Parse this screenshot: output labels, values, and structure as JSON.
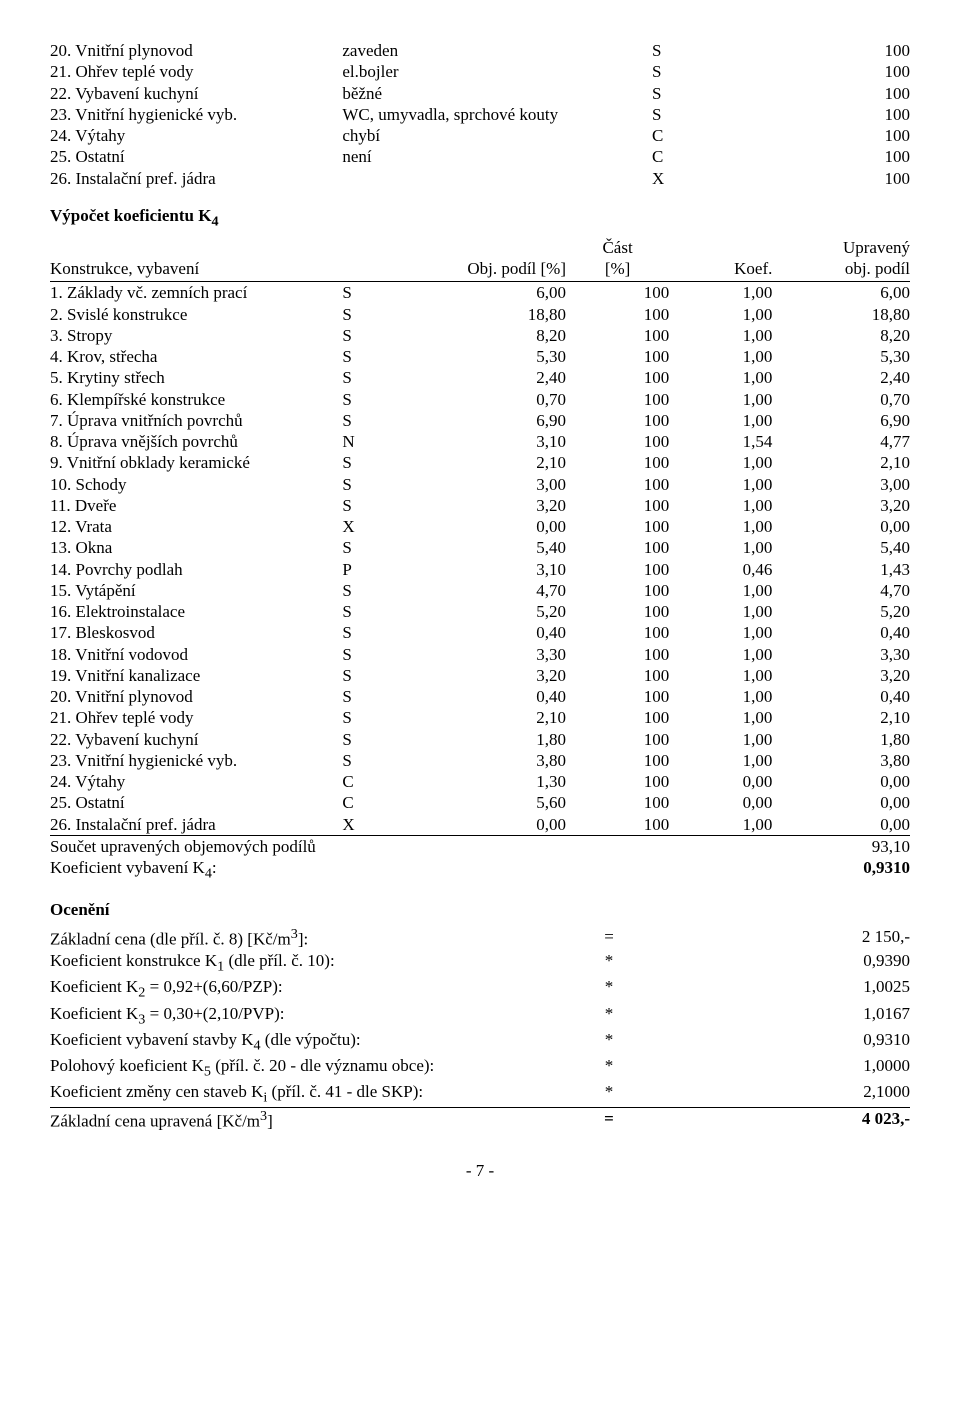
{
  "items": [
    {
      "n": "20.",
      "name": "Vnitřní plynovod",
      "desc": "zaveden",
      "code": "S",
      "val": "100"
    },
    {
      "n": "21.",
      "name": "Ohřev teplé vody",
      "desc": "el.bojler",
      "code": "S",
      "val": "100"
    },
    {
      "n": "22.",
      "name": "Vybavení kuchyní",
      "desc": "běžné",
      "code": "S",
      "val": "100"
    },
    {
      "n": "23.",
      "name": "Vnitřní hygienické vyb.",
      "desc": "WC, umyvadla, sprchové kouty",
      "code": "S",
      "val": "100"
    },
    {
      "n": "24.",
      "name": "Výtahy",
      "desc": "chybí",
      "code": "C",
      "val": "100"
    },
    {
      "n": "25.",
      "name": "Ostatní",
      "desc": "není",
      "code": "C",
      "val": "100"
    },
    {
      "n": "26.",
      "name": "Instalační pref. jádra",
      "desc": "",
      "code": "X",
      "val": "100"
    }
  ],
  "coef_title": "Výpočet koeficientu K4",
  "coef_header": {
    "col1": "Konstrukce, vybavení",
    "col2": "Obj. podíl [%]",
    "col3_a": "Část",
    "col3_b": "[%]",
    "col4": "Koef.",
    "col5_a": "Upravený",
    "col5_b": "obj. podíl"
  },
  "coef_rows": [
    {
      "n": "1.",
      "name": "Základy vč. zemních prací",
      "code": "S",
      "podil": "6,00",
      "cast": "100",
      "koef": "1,00",
      "upr": "6,00"
    },
    {
      "n": "2.",
      "name": "Svislé konstrukce",
      "code": "S",
      "podil": "18,80",
      "cast": "100",
      "koef": "1,00",
      "upr": "18,80"
    },
    {
      "n": "3.",
      "name": "Stropy",
      "code": "S",
      "podil": "8,20",
      "cast": "100",
      "koef": "1,00",
      "upr": "8,20"
    },
    {
      "n": "4.",
      "name": "Krov, střecha",
      "code": "S",
      "podil": "5,30",
      "cast": "100",
      "koef": "1,00",
      "upr": "5,30"
    },
    {
      "n": "5.",
      "name": "Krytiny střech",
      "code": "S",
      "podil": "2,40",
      "cast": "100",
      "koef": "1,00",
      "upr": "2,40"
    },
    {
      "n": "6.",
      "name": "Klempířské konstrukce",
      "code": "S",
      "podil": "0,70",
      "cast": "100",
      "koef": "1,00",
      "upr": "0,70"
    },
    {
      "n": "7.",
      "name": "Úprava vnitřních povrchů",
      "code": "S",
      "podil": "6,90",
      "cast": "100",
      "koef": "1,00",
      "upr": "6,90"
    },
    {
      "n": "8.",
      "name": "Úprava vnějších povrchů",
      "code": "N",
      "podil": "3,10",
      "cast": "100",
      "koef": "1,54",
      "upr": "4,77"
    },
    {
      "n": "9.",
      "name": "Vnitřní obklady keramické",
      "code": "S",
      "podil": "2,10",
      "cast": "100",
      "koef": "1,00",
      "upr": "2,10"
    },
    {
      "n": "10.",
      "name": "Schody",
      "code": "S",
      "podil": "3,00",
      "cast": "100",
      "koef": "1,00",
      "upr": "3,00"
    },
    {
      "n": "11.",
      "name": "Dveře",
      "code": "S",
      "podil": "3,20",
      "cast": "100",
      "koef": "1,00",
      "upr": "3,20"
    },
    {
      "n": "12.",
      "name": "Vrata",
      "code": "X",
      "podil": "0,00",
      "cast": "100",
      "koef": "1,00",
      "upr": "0,00"
    },
    {
      "n": "13.",
      "name": "Okna",
      "code": "S",
      "podil": "5,40",
      "cast": "100",
      "koef": "1,00",
      "upr": "5,40"
    },
    {
      "n": "14.",
      "name": "Povrchy podlah",
      "code": "P",
      "podil": "3,10",
      "cast": "100",
      "koef": "0,46",
      "upr": "1,43"
    },
    {
      "n": "15.",
      "name": "Vytápění",
      "code": "S",
      "podil": "4,70",
      "cast": "100",
      "koef": "1,00",
      "upr": "4,70"
    },
    {
      "n": "16.",
      "name": "Elektroinstalace",
      "code": "S",
      "podil": "5,20",
      "cast": "100",
      "koef": "1,00",
      "upr": "5,20"
    },
    {
      "n": "17.",
      "name": "Bleskosvod",
      "code": "S",
      "podil": "0,40",
      "cast": "100",
      "koef": "1,00",
      "upr": "0,40"
    },
    {
      "n": "18.",
      "name": "Vnitřní vodovod",
      "code": "S",
      "podil": "3,30",
      "cast": "100",
      "koef": "1,00",
      "upr": "3,30"
    },
    {
      "n": "19.",
      "name": "Vnitřní kanalizace",
      "code": "S",
      "podil": "3,20",
      "cast": "100",
      "koef": "1,00",
      "upr": "3,20"
    },
    {
      "n": "20.",
      "name": "Vnitřní plynovod",
      "code": "S",
      "podil": "0,40",
      "cast": "100",
      "koef": "1,00",
      "upr": "0,40"
    },
    {
      "n": "21.",
      "name": "Ohřev teplé vody",
      "code": "S",
      "podil": "2,10",
      "cast": "100",
      "koef": "1,00",
      "upr": "2,10"
    },
    {
      "n": "22.",
      "name": "Vybavení kuchyní",
      "code": "S",
      "podil": "1,80",
      "cast": "100",
      "koef": "1,00",
      "upr": "1,80"
    },
    {
      "n": "23.",
      "name": "Vnitřní hygienické vyb.",
      "code": "S",
      "podil": "3,80",
      "cast": "100",
      "koef": "1,00",
      "upr": "3,80"
    },
    {
      "n": "24.",
      "name": "Výtahy",
      "code": "C",
      "podil": "1,30",
      "cast": "100",
      "koef": "0,00",
      "upr": "0,00"
    },
    {
      "n": "25.",
      "name": "Ostatní",
      "code": "C",
      "podil": "5,60",
      "cast": "100",
      "koef": "0,00",
      "upr": "0,00"
    },
    {
      "n": "26.",
      "name": "Instalační pref. jádra",
      "code": "X",
      "podil": "0,00",
      "cast": "100",
      "koef": "1,00",
      "upr": "0,00"
    }
  ],
  "sum1_label": "Součet upravených objemových podílů",
  "sum1_val": "93,10",
  "sum2_label": "Koeficient vybavení K4:",
  "sum2_val": "0,9310",
  "oc_title": "Ocenění",
  "oc_rows": [
    {
      "label": "Základní cena (dle příl. č. 8) [Kč/m3]:",
      "op": "=",
      "val": "2 150,-"
    },
    {
      "label": "Koeficient konstrukce K1 (dle příl. č. 10):",
      "op": "*",
      "val": "0,9390"
    },
    {
      "label": "Koeficient K2 = 0,92+(6,60/PZP):",
      "op": "*",
      "val": "1,0025"
    },
    {
      "label": "Koeficient K3 = 0,30+(2,10/PVP):",
      "op": "*",
      "val": "1,0167"
    },
    {
      "label": "Koeficient vybavení stavby K4 (dle výpočtu):",
      "op": "*",
      "val": "0,9310"
    },
    {
      "label": "Polohový koeficient K5 (příl. č. 20 - dle významu obce):",
      "op": "*",
      "val": "1,0000"
    },
    {
      "label": "Koeficient změny cen staveb Ki (příl. č. 41 - dle SKP):",
      "op": "*",
      "val": "2,1000"
    }
  ],
  "oc_result_label": "Základní cena upravená [Kč/m3]",
  "oc_result_op": "=",
  "oc_result_val": "4 023,-",
  "page": "- 7 -"
}
